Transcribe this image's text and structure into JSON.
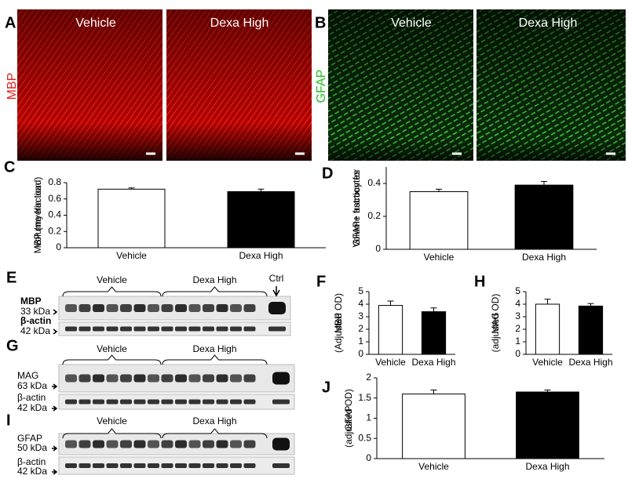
{
  "images": {
    "A": {
      "panel": "A",
      "stain": "MBP",
      "left": "Vehicle",
      "right": "Dexa High"
    },
    "B": {
      "panel": "B",
      "stain": "GFAP",
      "left": "Vehicle",
      "right": "Dexa High"
    }
  },
  "blots": [
    {
      "panel": "E",
      "groups": [
        "Vehicle",
        "Dexa High"
      ],
      "control": "Ctrl",
      "protein": "MBP",
      "protein_kda": "33 kDa",
      "loading": "β-actin",
      "loading_kda": "42 kDa"
    },
    {
      "panel": "G",
      "groups": [
        "Vehicle",
        "Dexa High"
      ],
      "protein": "MAG",
      "protein_kda": "63 kDa",
      "loading": "β-actin",
      "loading_kda": "42 kDa"
    },
    {
      "panel": "I",
      "groups": [
        "Vehicle",
        "Dexa High"
      ],
      "protein": "GFAP",
      "protein_kda": "50 kDa",
      "loading": "β-actin",
      "loading_kda": "42 kDa"
    }
  ],
  "chart_data": [
    {
      "type": "bar",
      "panel": "C",
      "ylabel": [
        "Volume fraction",
        "MBP (myelin load)"
      ],
      "categories": [
        "Vehicle",
        "Dexa High"
      ],
      "values": [
        0.72,
        0.69
      ],
      "errors": [
        0.015,
        0.03
      ],
      "colors": [
        "#ffffff",
        "#000000"
      ],
      "ylim": [
        0,
        0.8
      ],
      "yticks": [
        0,
        0.2,
        0.4,
        0.6,
        0.8
      ]
    },
    {
      "type": "bar",
      "panel": "D",
      "ylabel": [
        "Volume fraction for",
        "GFAP+ astrocytes"
      ],
      "categories": [
        "Vehicle",
        "Dexa  High"
      ],
      "values": [
        0.35,
        0.39
      ],
      "errors": [
        0.015,
        0.022
      ],
      "colors": [
        "#ffffff",
        "#000000"
      ],
      "ylim": [
        0,
        0.5
      ],
      "yticks": [
        0,
        0.2,
        0.4
      ]
    },
    {
      "type": "bar",
      "panel": "F",
      "ylabel": [
        "MBP",
        "(Adjusted OD)"
      ],
      "categories": [
        "Vehicle",
        "Dexa High"
      ],
      "values": [
        3.9,
        3.4
      ],
      "errors": [
        0.35,
        0.3
      ],
      "colors": [
        "#ffffff",
        "#000000"
      ],
      "ylim": [
        0,
        5
      ],
      "yticks": [
        0,
        1,
        2,
        3,
        4,
        5
      ]
    },
    {
      "type": "bar",
      "panel": "H",
      "ylabel": [
        "MAG",
        "(adjusted OD)"
      ],
      "categories": [
        "Vehicle",
        "Dexa High"
      ],
      "values": [
        4.0,
        3.85
      ],
      "errors": [
        0.4,
        0.2
      ],
      "colors": [
        "#ffffff",
        "#000000"
      ],
      "ylim": [
        0,
        5
      ],
      "yticks": [
        0,
        1,
        2,
        3,
        4,
        5
      ]
    },
    {
      "type": "bar",
      "panel": "J",
      "ylabel": [
        "GFAP",
        "(adjusted OD)"
      ],
      "categories": [
        "Vehicle",
        "Dexa High"
      ],
      "values": [
        1.6,
        1.65
      ],
      "errors": [
        0.1,
        0.05
      ],
      "colors": [
        "#ffffff",
        "#000000"
      ],
      "ylim": [
        0,
        2
      ],
      "yticks": [
        0,
        0.5,
        1,
        1.5,
        2
      ]
    }
  ]
}
